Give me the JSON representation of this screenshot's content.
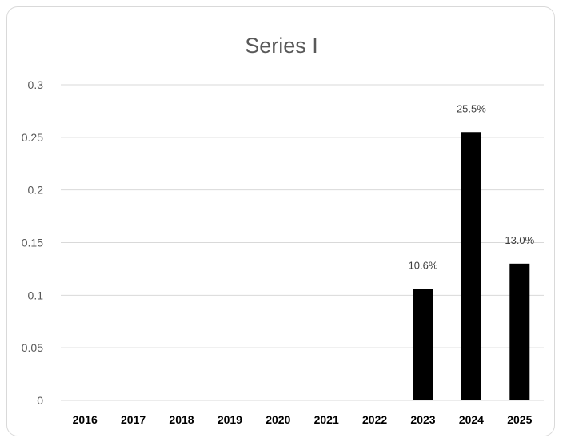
{
  "chart_data": {
    "type": "bar",
    "title": "Series I",
    "categories": [
      "2016",
      "2017",
      "2018",
      "2019",
      "2020",
      "2021",
      "2022",
      "2023",
      "2024",
      "2025"
    ],
    "values": [
      0,
      0,
      0,
      0,
      0,
      0,
      0,
      0.106,
      0.255,
      0.13
    ],
    "data_labels": [
      "",
      "",
      "",
      "",
      "",
      "",
      "",
      "10.6%",
      "25.5%",
      "13.0%"
    ],
    "y_ticks": [
      "0",
      "0.05",
      "0.1",
      "0.15",
      "0.2",
      "0.25",
      "0.3"
    ],
    "ylim": [
      0,
      0.3
    ],
    "grid": true,
    "legend": "none",
    "bar_color": "#000000"
  }
}
